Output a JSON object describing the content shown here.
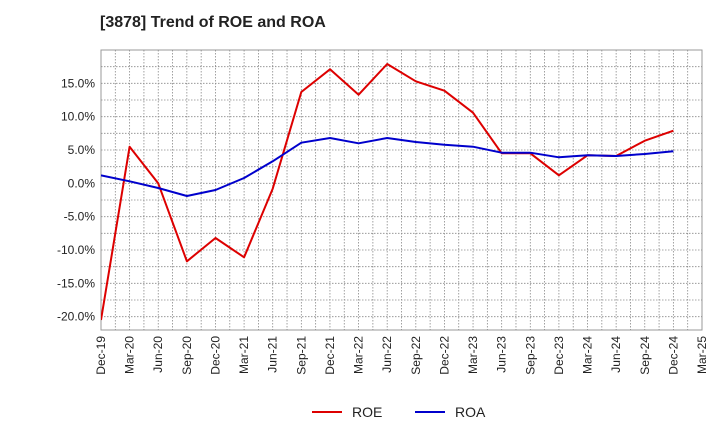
{
  "chart_data": {
    "type": "line",
    "title": "[3878]  Trend of ROE and ROA",
    "xlabel": "",
    "ylabel": "",
    "categories": [
      "Dec-19",
      "Mar-20",
      "Jun-20",
      "Sep-20",
      "Dec-20",
      "Mar-21",
      "Jun-21",
      "Sep-21",
      "Dec-21",
      "Mar-22",
      "Jun-22",
      "Sep-22",
      "Dec-22",
      "Mar-23",
      "Jun-23",
      "Sep-23",
      "Dec-23",
      "Mar-24",
      "Jun-24",
      "Sep-24",
      "Dec-24",
      "Mar-25"
    ],
    "y_ticks": [
      15.0,
      10.0,
      5.0,
      0.0,
      -5.0,
      -10.0,
      -15.0,
      -20.0
    ],
    "y_tick_labels": [
      "15.0%",
      "10.0%",
      "5.0%",
      "0.0%",
      "-5.0%",
      "-10.0%",
      "-15.0%",
      "-20.0%"
    ],
    "ylim": [
      -22,
      20
    ],
    "grid": true,
    "legend_position": "bottom-center",
    "series": [
      {
        "name": "ROE",
        "color": "#dd0000",
        "values": [
          -20.5,
          5.5,
          0.0,
          -11.7,
          -8.2,
          -11.1,
          -0.8,
          13.7,
          17.1,
          13.3,
          17.9,
          15.3,
          13.9,
          10.6,
          4.5,
          4.5,
          1.2,
          4.2,
          4.1,
          6.4,
          7.9,
          null
        ]
      },
      {
        "name": "ROA",
        "color": "#0000cc",
        "values": [
          1.2,
          0.3,
          -0.7,
          -1.9,
          -1.0,
          0.8,
          3.3,
          6.1,
          6.8,
          6.0,
          6.8,
          6.2,
          5.8,
          5.5,
          4.6,
          4.6,
          3.9,
          4.2,
          4.1,
          4.4,
          4.8,
          null
        ]
      }
    ]
  }
}
